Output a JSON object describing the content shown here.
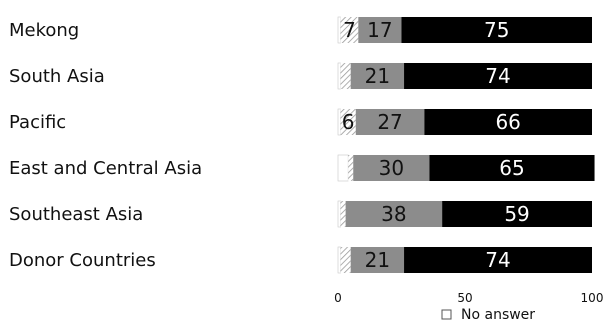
{
  "chart_data": {
    "type": "bar",
    "orientation": "horizontal",
    "stacked": true,
    "categories": [
      "Mekong",
      "South Asia",
      "Pacific",
      "East and Central Asia",
      "Southeast Asia",
      "Donor Countries"
    ],
    "series": [
      {
        "name": "No answer",
        "color": "#ffffff",
        "pattern": "none",
        "values": [
          1,
          1,
          1,
          4,
          1,
          1
        ],
        "labels": [
          "",
          "",
          "",
          "",
          "",
          ""
        ]
      },
      {
        "name": "",
        "color": "#ffffff",
        "pattern": "diagonal-hatch",
        "values": [
          7,
          4,
          6,
          2,
          2,
          4
        ],
        "labels": [
          "7",
          "",
          "6",
          "",
          "",
          ""
        ]
      },
      {
        "name": "",
        "color": "#8c8c8c",
        "pattern": "none",
        "values": [
          17,
          21,
          27,
          30,
          38,
          21
        ],
        "labels": [
          "17",
          "21",
          "27",
          "30",
          "38",
          "21"
        ]
      },
      {
        "name": "",
        "color": "#000000",
        "pattern": "none",
        "values": [
          75,
          74,
          66,
          65,
          59,
          74
        ],
        "labels": [
          "75",
          "74",
          "66",
          "65",
          "59",
          "74"
        ]
      }
    ],
    "xlim": [
      0,
      100
    ],
    "xticks": [
      "0",
      "50",
      "100"
    ],
    "legend": {
      "placement": "bottom",
      "entries": [
        "No answer"
      ]
    },
    "grid": false,
    "title": "",
    "xlabel": "",
    "ylabel": ""
  }
}
